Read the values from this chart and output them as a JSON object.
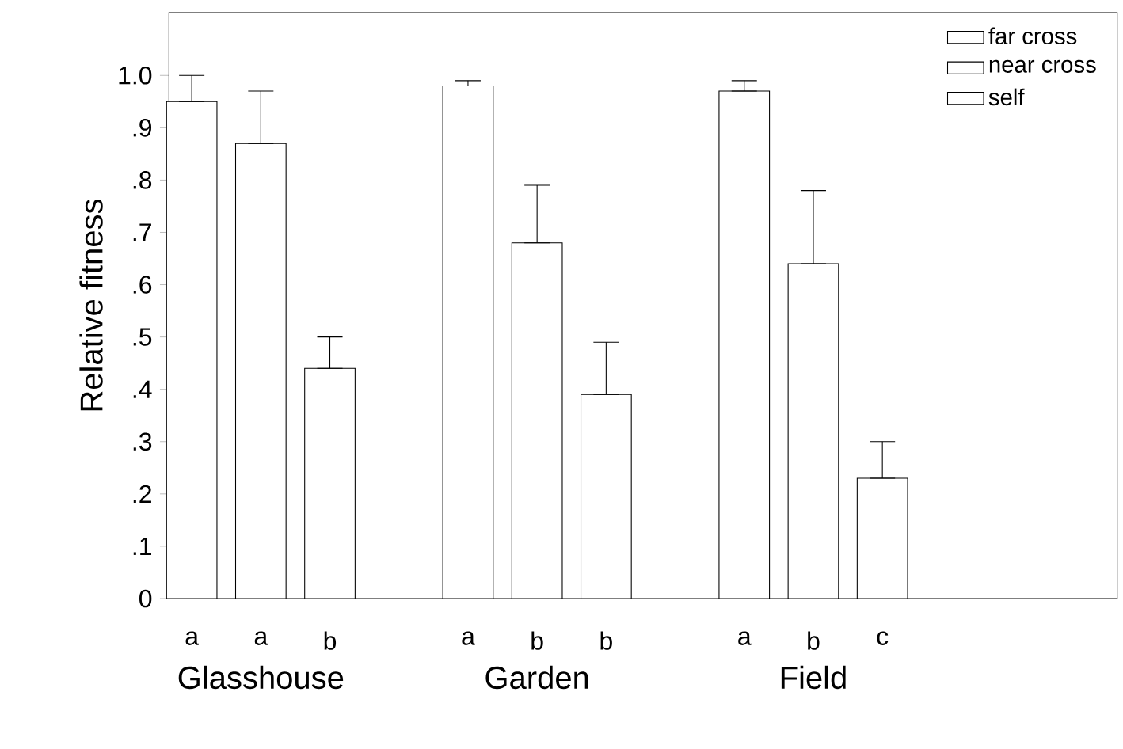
{
  "chart_data": {
    "type": "bar",
    "ylabel": "Relative fitness",
    "categories": [
      "Glasshouse",
      "Garden",
      "Field"
    ],
    "series": [
      {
        "name": "far cross",
        "color": "#ffffff",
        "values": [
          0.95,
          0.98,
          0.97
        ],
        "errors": [
          [
            0.95,
            1.0
          ],
          [
            0.98,
            0.99
          ],
          [
            0.97,
            0.99
          ]
        ]
      },
      {
        "name": "near cross",
        "color": "#ffffff",
        "values": [
          0.87,
          0.68,
          0.64
        ],
        "errors": [
          [
            0.87,
            0.97
          ],
          [
            0.68,
            0.79
          ],
          [
            0.64,
            0.78
          ]
        ]
      },
      {
        "name": "self",
        "color": "#ffffff",
        "values": [
          0.44,
          0.39,
          0.23
        ],
        "errors": [
          [
            0.44,
            0.5
          ],
          [
            0.39,
            0.49
          ],
          [
            0.23,
            0.3
          ]
        ]
      }
    ],
    "ylim": [
      0,
      1.12
    ],
    "yticks": [
      0,
      {
        "value": 0.1,
        "label": ".1"
      },
      {
        "value": 0.2,
        "label": ".2"
      },
      {
        "value": 0.3,
        "label": ".3"
      },
      {
        "value": 0.4,
        "label": ".4"
      },
      {
        "value": 0.5,
        "label": ".5"
      },
      {
        "value": 0.6,
        "label": ".6"
      },
      {
        "value": 0.7,
        "label": ".7"
      },
      {
        "value": 0.8,
        "label": ".8"
      },
      {
        "value": 0.9,
        "label": ".9"
      },
      {
        "value": 1.0,
        "label": "1.0"
      }
    ],
    "legend": "top right",
    "annotations": [
      "a",
      "a",
      "b",
      "a",
      "b",
      "b",
      "a",
      "b",
      "c"
    ]
  }
}
